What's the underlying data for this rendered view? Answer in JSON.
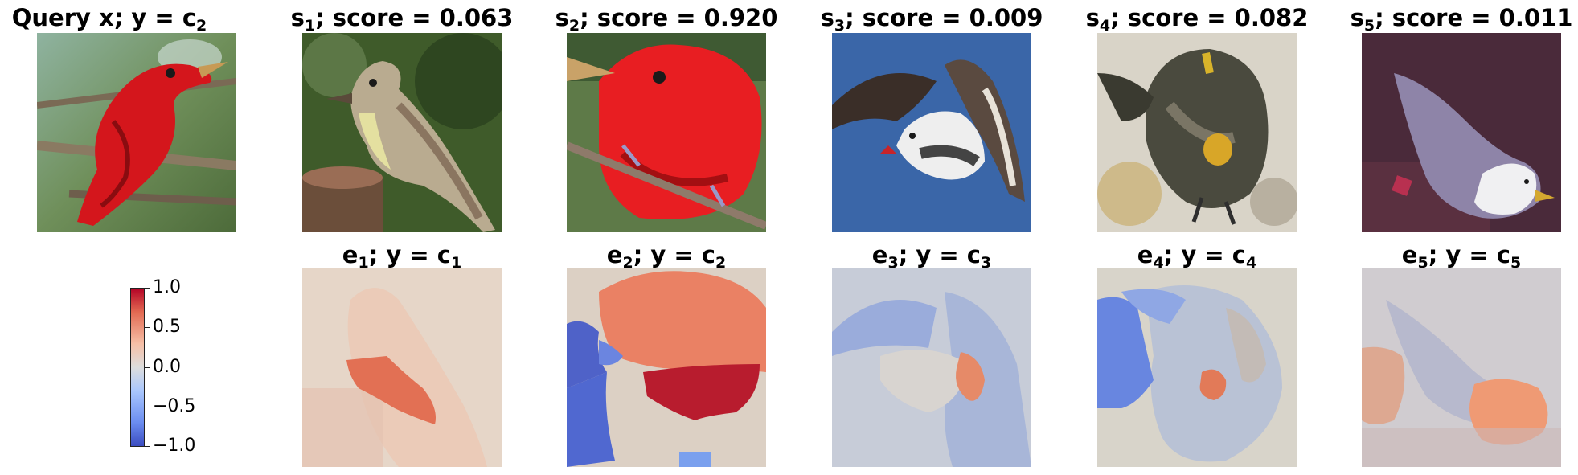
{
  "figure": {
    "query_title": {
      "prefix": "Query x; y = c",
      "sub": "2"
    },
    "support_titles": [
      {
        "s": "s",
        "sub": "1",
        "rest": "; score = 0.063"
      },
      {
        "s": "s",
        "sub": "2",
        "rest": "; score = 0.920"
      },
      {
        "s": "s",
        "sub": "3",
        "rest": "; score = 0.009"
      },
      {
        "s": "s",
        "sub": "4",
        "rest": "; score = 0.082"
      },
      {
        "s": "s",
        "sub": "5",
        "rest": "; score = 0.011"
      }
    ],
    "explanation_titles": [
      {
        "e": "e",
        "esub": "1",
        "mid": "; y = c",
        "csub": "1"
      },
      {
        "e": "e",
        "esub": "2",
        "mid": "; y = c",
        "csub": "2"
      },
      {
        "e": "e",
        "esub": "3",
        "mid": "; y = c",
        "csub": "3"
      },
      {
        "e": "e",
        "esub": "4",
        "mid": "; y = c",
        "csub": "4"
      },
      {
        "e": "e",
        "esub": "5",
        "mid": "; y = c",
        "csub": "5"
      }
    ],
    "colorbar": {
      "colormap": "coolwarm",
      "ticks": [
        "1.0",
        "0.5",
        "0.0",
        "−0.5",
        "−1.0"
      ],
      "range": [
        -1.0,
        1.0
      ]
    },
    "colors": {
      "positive": "#b40426",
      "neutral": "#dddddd",
      "negative": "#3b4cc0"
    }
  }
}
